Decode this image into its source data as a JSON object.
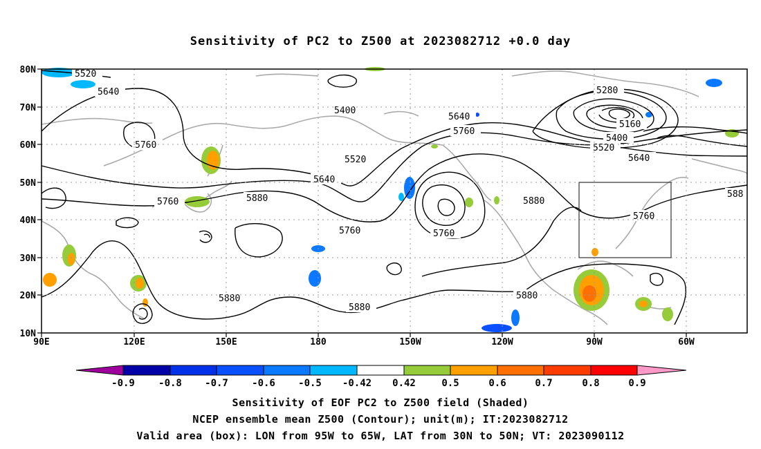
{
  "title": "Sensitivity of PC2 to Z500 at 2023082712 +0.0 day",
  "map": {
    "lon_ticks": [
      "90E",
      "120E",
      "150E",
      "180",
      "150W",
      "120W",
      "90W",
      "60W"
    ],
    "lat_ticks": [
      "80N",
      "70N",
      "60N",
      "50N",
      "40N",
      "30N",
      "20N",
      "10N"
    ],
    "box": {
      "lon_from": "95W",
      "lon_to": "65W",
      "lat_from": "30N",
      "lat_to": "50N"
    },
    "contour_labels": [
      {
        "text": "5520"
      },
      {
        "text": "5640"
      },
      {
        "text": "5760"
      },
      {
        "text": "5760"
      },
      {
        "text": "5400"
      },
      {
        "text": "5520"
      },
      {
        "text": "5640"
      },
      {
        "text": "5880"
      },
      {
        "text": "5880"
      },
      {
        "text": "5640"
      },
      {
        "text": "5760"
      },
      {
        "text": "5760"
      },
      {
        "text": "5760"
      },
      {
        "text": "5880"
      },
      {
        "text": "5880"
      },
      {
        "text": "5880"
      },
      {
        "text": "5280"
      },
      {
        "text": "5160"
      },
      {
        "text": "5400"
      },
      {
        "text": "5520"
      },
      {
        "text": "5640"
      },
      {
        "text": "5760"
      },
      {
        "text": "588"
      }
    ]
  },
  "colorbar": {
    "labels": [
      "-0.9",
      "-0.8",
      "-0.7",
      "-0.6",
      "-0.5",
      "-0.42",
      "0.42",
      "0.5",
      "0.6",
      "0.7",
      "0.8",
      "0.9"
    ],
    "colors": [
      "#a0009c",
      "#0000a8",
      "#0030e8",
      "#0a50ff",
      "#0a78ff",
      "#00b8ff",
      "#ffffff",
      "#96cc3a",
      "#ffa000",
      "#ff7000",
      "#ff3c00",
      "#ff0000",
      "#ff9ac8"
    ]
  },
  "captions": [
    "Sensitivity of EOF PC2 to Z500 field (Shaded)",
    "NCEP ensemble mean Z500 (Contour); unit(m); IT:2023082712",
    "Valid area (box): LON from 95W to 65W, LAT from 30N to 50N; VT: 2023090112"
  ]
}
